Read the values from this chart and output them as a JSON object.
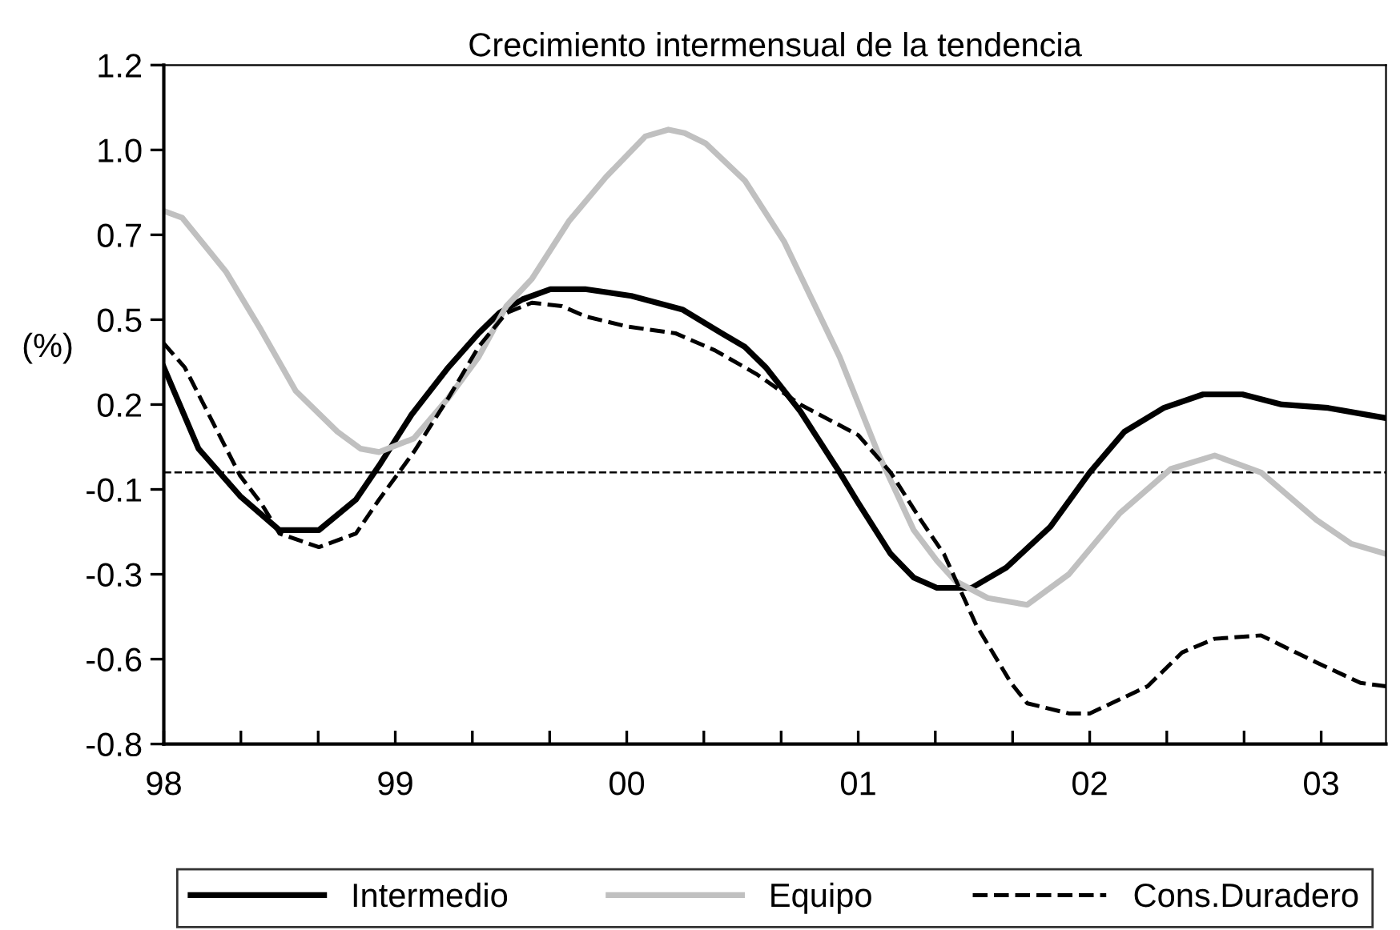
{
  "chart_data": {
    "type": "line",
    "title": "Crecimiento intermensual de la tendencia",
    "ylabel": "(%)",
    "xlim": [
      1998,
      2003.28
    ],
    "ylim": [
      -0.8,
      1.2
    ],
    "xticks": [
      {
        "value": 1998,
        "label": "98"
      },
      {
        "value": 1998.333,
        "label": null
      },
      {
        "value": 1998.667,
        "label": null
      },
      {
        "value": 1999,
        "label": "99"
      },
      {
        "value": 1999.333,
        "label": null
      },
      {
        "value": 1999.667,
        "label": null
      },
      {
        "value": 2000,
        "label": "00"
      },
      {
        "value": 2000.333,
        "label": null
      },
      {
        "value": 2000.667,
        "label": null
      },
      {
        "value": 2001,
        "label": "01"
      },
      {
        "value": 2001.333,
        "label": null
      },
      {
        "value": 2001.667,
        "label": null
      },
      {
        "value": 2002,
        "label": "02"
      },
      {
        "value": 2002.333,
        "label": null
      },
      {
        "value": 2002.667,
        "label": null
      },
      {
        "value": 2003,
        "label": "03"
      }
    ],
    "yticks": [
      {
        "value": -0.8,
        "label": "-0.8"
      },
      {
        "value": -0.55,
        "label": "-0.6"
      },
      {
        "value": -0.3,
        "label": "-0.3"
      },
      {
        "value": -0.05,
        "label": "-0.1"
      },
      {
        "value": 0.2,
        "label": "0.2"
      },
      {
        "value": 0.45,
        "label": "0.5"
      },
      {
        "value": 0.7,
        "label": "0.7"
      },
      {
        "value": 0.95,
        "label": "1.0"
      },
      {
        "value": 1.2,
        "label": "1.2"
      }
    ],
    "ref_lines": [
      {
        "axis": "y",
        "value": 0,
        "color": "#000000",
        "line_style": "dashed"
      }
    ],
    "grid": false,
    "legend": "bottom",
    "marker": "none",
    "series": [
      {
        "name": "Intermedio",
        "color": "#000000",
        "line_style": "solid",
        "x": [
          1998.0,
          1998.15,
          1998.33,
          1998.5,
          1998.67,
          1998.83,
          1998.93,
          1999.07,
          1999.23,
          1999.36,
          1999.45,
          1999.55,
          1999.67,
          1999.82,
          2000.02,
          2000.24,
          2000.41,
          2000.51,
          2000.6,
          2000.75,
          2000.92,
          2001.0,
          2001.14,
          2001.24,
          2001.34,
          2001.49,
          2001.64,
          2001.83,
          2002.0,
          2002.15,
          2002.32,
          2002.49,
          2002.66,
          2002.83,
          2003.03,
          2003.28
        ],
        "values": [
          0.31,
          0.07,
          -0.07,
          -0.17,
          -0.17,
          -0.08,
          0.02,
          0.17,
          0.31,
          0.41,
          0.47,
          0.51,
          0.54,
          0.54,
          0.52,
          0.48,
          0.41,
          0.37,
          0.31,
          0.18,
          0.0,
          -0.09,
          -0.24,
          -0.31,
          -0.34,
          -0.34,
          -0.28,
          -0.16,
          0.0,
          0.12,
          0.19,
          0.23,
          0.23,
          0.2,
          0.19,
          0.16
        ]
      },
      {
        "name": "Equipo",
        "color": "#c0c0c0",
        "line_style": "solid",
        "x": [
          1998.0,
          1998.08,
          1998.27,
          1998.42,
          1998.57,
          1998.75,
          1998.85,
          1998.93,
          1999.08,
          1999.23,
          1999.36,
          1999.48,
          1999.59,
          1999.75,
          1999.91,
          2000.08,
          2000.18,
          2000.25,
          2000.34,
          2000.51,
          2000.68,
          2000.92,
          2001.09,
          2001.24,
          2001.34,
          2001.42,
          2001.56,
          2001.73,
          2001.91,
          2002.13,
          2002.35,
          2002.54,
          2002.74,
          2002.98,
          2003.13,
          2003.28
        ],
        "values": [
          0.77,
          0.75,
          0.59,
          0.42,
          0.24,
          0.12,
          0.07,
          0.06,
          0.1,
          0.22,
          0.34,
          0.49,
          0.57,
          0.74,
          0.87,
          0.99,
          1.01,
          1.0,
          0.97,
          0.86,
          0.68,
          0.34,
          0.05,
          -0.17,
          -0.26,
          -0.32,
          -0.37,
          -0.39,
          -0.3,
          -0.12,
          0.01,
          0.05,
          0.0,
          -0.14,
          -0.21,
          -0.24
        ]
      },
      {
        "name": "Cons.Duradero",
        "color": "#000000",
        "line_style": "dashed",
        "x": [
          1998.0,
          1998.09,
          1998.18,
          1998.33,
          1998.42,
          1998.5,
          1998.67,
          1998.83,
          1998.93,
          1999.08,
          1999.23,
          1999.36,
          1999.48,
          1999.59,
          1999.72,
          1999.82,
          2000.0,
          2000.21,
          2000.38,
          2000.56,
          2000.75,
          2001.0,
          2001.14,
          2001.27,
          2001.37,
          2001.51,
          2001.66,
          2001.73,
          2001.91,
          2002.0,
          2002.25,
          2002.4,
          2002.54,
          2002.74,
          2002.98,
          2003.17,
          2003.28
        ],
        "values": [
          0.38,
          0.31,
          0.19,
          -0.01,
          -0.09,
          -0.18,
          -0.22,
          -0.18,
          -0.08,
          0.06,
          0.22,
          0.37,
          0.47,
          0.5,
          0.49,
          0.46,
          0.43,
          0.41,
          0.36,
          0.29,
          0.2,
          0.11,
          0.0,
          -0.14,
          -0.24,
          -0.45,
          -0.62,
          -0.68,
          -0.71,
          -0.71,
          -0.63,
          -0.53,
          -0.49,
          -0.48,
          -0.56,
          -0.62,
          -0.63
        ]
      }
    ]
  }
}
